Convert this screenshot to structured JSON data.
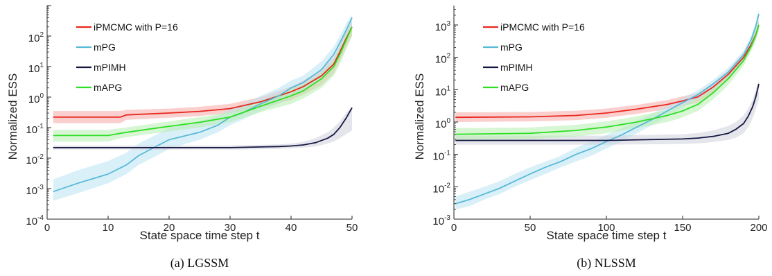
{
  "chart_data": [
    {
      "type": "line",
      "caption": "(a) LGSSM",
      "xlabel": "State space time step t",
      "ylabel": "Normalized ESS",
      "xlim": [
        0,
        50
      ],
      "ylim_log10": [
        -4,
        3
      ],
      "yscale": "log",
      "xticks": [
        "0",
        "10",
        "20",
        "30",
        "40",
        "50"
      ],
      "yticks": [
        -4,
        -3,
        -2,
        -1,
        0,
        1,
        2
      ],
      "legend_position": "top-left",
      "series": [
        {
          "name": "iPMCMC with P=16",
          "color": "#e8261e",
          "band_color": "#f6a8a4",
          "x": [
            1,
            12,
            13,
            20,
            25,
            30,
            35,
            40,
            42,
            45,
            47,
            48,
            49,
            50
          ],
          "y": [
            0.22,
            0.22,
            0.26,
            0.3,
            0.34,
            0.42,
            0.7,
            1.5,
            2.2,
            5,
            12,
            30,
            80,
            200
          ],
          "lo": [
            0.14,
            0.14,
            0.18,
            0.21,
            0.24,
            0.3,
            0.45,
            0.8,
            1.2,
            2.5,
            6,
            15,
            40,
            100
          ],
          "hi": [
            0.35,
            0.35,
            0.38,
            0.42,
            0.48,
            0.6,
            1.0,
            2.2,
            3.5,
            8,
            20,
            50,
            150,
            300
          ]
        },
        {
          "name": "mPG",
          "color": "#58b9d8",
          "band_color": "#b9e4f3",
          "x": [
            1,
            5,
            10,
            13,
            15,
            18,
            20,
            25,
            28,
            30,
            32,
            35,
            38,
            40,
            42,
            45,
            47,
            48,
            49,
            50
          ],
          "y": [
            0.0008,
            0.0015,
            0.003,
            0.006,
            0.012,
            0.025,
            0.04,
            0.07,
            0.12,
            0.22,
            0.3,
            0.6,
            1.1,
            2.0,
            3.0,
            8,
            25,
            60,
            150,
            400
          ],
          "lo": [
            0.0004,
            0.0007,
            0.0015,
            0.003,
            0.006,
            0.012,
            0.02,
            0.04,
            0.07,
            0.12,
            0.18,
            0.35,
            0.6,
            1.0,
            1.5,
            4,
            12,
            30,
            80,
            200
          ],
          "hi": [
            0.002,
            0.004,
            0.008,
            0.015,
            0.03,
            0.06,
            0.1,
            0.16,
            0.25,
            0.4,
            0.55,
            1.1,
            2.0,
            3.5,
            5,
            15,
            45,
            100,
            250,
            500
          ]
        },
        {
          "name": "mPIMH",
          "color": "#141641",
          "band_color": "#cfd0dc",
          "x": [
            1,
            10,
            20,
            30,
            38,
            40,
            42,
            44,
            46,
            47,
            48,
            49,
            50
          ],
          "y": [
            0.022,
            0.022,
            0.022,
            0.022,
            0.024,
            0.025,
            0.027,
            0.032,
            0.045,
            0.06,
            0.1,
            0.2,
            0.45
          ],
          "lo": [
            0.019,
            0.019,
            0.019,
            0.019,
            0.02,
            0.021,
            0.022,
            0.024,
            0.03,
            0.035,
            0.045,
            0.06,
            0.08
          ],
          "hi": [
            0.026,
            0.026,
            0.026,
            0.026,
            0.028,
            0.03,
            0.034,
            0.045,
            0.07,
            0.1,
            0.16,
            0.3,
            0.5
          ]
        },
        {
          "name": "mAPG",
          "color": "#2ede24",
          "band_color": "#b6efae",
          "x": [
            1,
            10,
            12,
            15,
            20,
            25,
            30,
            35,
            40,
            42,
            45,
            47,
            48,
            49,
            50
          ],
          "y": [
            0.055,
            0.055,
            0.065,
            0.08,
            0.11,
            0.15,
            0.22,
            0.5,
            1.1,
            1.6,
            4,
            10,
            25,
            70,
            200
          ],
          "lo": [
            0.035,
            0.035,
            0.045,
            0.055,
            0.075,
            0.1,
            0.15,
            0.32,
            0.6,
            0.9,
            2,
            5,
            12,
            35,
            100
          ],
          "hi": [
            0.085,
            0.085,
            0.095,
            0.115,
            0.16,
            0.22,
            0.32,
            0.75,
            1.8,
            2.6,
            6,
            16,
            40,
            110,
            250
          ]
        }
      ]
    },
    {
      "type": "line",
      "caption": "(b) NLSSM",
      "xlabel": "State space time step t",
      "ylabel": "Normalized ESS",
      "xlim": [
        0,
        200
      ],
      "ylim_log10": [
        -3,
        3.6
      ],
      "yscale": "log",
      "xticks": [
        "0",
        "50",
        "100",
        "150",
        "200"
      ],
      "yticks": [
        -3,
        -2,
        -1,
        0,
        1,
        2,
        3
      ],
      "legend_position": "top-left",
      "series": [
        {
          "name": "iPMCMC with P=16",
          "color": "#e8261e",
          "band_color": "#f6a8a4",
          "x": [
            1,
            50,
            80,
            100,
            120,
            140,
            150,
            160,
            170,
            180,
            190,
            195,
            198,
            200
          ],
          "y": [
            1.4,
            1.45,
            1.6,
            1.9,
            2.5,
            3.5,
            4.5,
            6,
            12,
            30,
            100,
            250,
            500,
            1000
          ],
          "lo": [
            1.0,
            1.05,
            1.15,
            1.35,
            1.8,
            2.5,
            3.2,
            4,
            8,
            20,
            70,
            180,
            350,
            700
          ],
          "hi": [
            2.0,
            2.05,
            2.25,
            2.6,
            3.4,
            4.8,
            6.2,
            8,
            16,
            40,
            140,
            350,
            700,
            1400
          ]
        },
        {
          "name": "mPG",
          "color": "#58b9d8",
          "band_color": "#b9e4f3",
          "x": [
            1,
            10,
            20,
            30,
            40,
            50,
            60,
            70,
            80,
            90,
            100,
            110,
            120,
            130,
            140,
            150,
            160,
            170,
            180,
            190,
            195,
            198,
            200
          ],
          "y": [
            0.003,
            0.004,
            0.006,
            0.009,
            0.015,
            0.025,
            0.04,
            0.06,
            0.1,
            0.15,
            0.25,
            0.4,
            0.7,
            1.2,
            2.2,
            4.0,
            7,
            15,
            35,
            120,
            350,
            900,
            2200
          ],
          "lo": [
            0.002,
            0.0025,
            0.004,
            0.006,
            0.01,
            0.016,
            0.025,
            0.04,
            0.06,
            0.09,
            0.15,
            0.25,
            0.45,
            0.8,
            1.5,
            2.8,
            5,
            10,
            25,
            80,
            240,
            600,
            1500
          ],
          "hi": [
            0.005,
            0.007,
            0.01,
            0.015,
            0.025,
            0.04,
            0.06,
            0.09,
            0.16,
            0.25,
            0.4,
            0.65,
            1.1,
            1.8,
            3.2,
            5.5,
            9.5,
            20,
            48,
            160,
            470,
            1200,
            3000
          ]
        },
        {
          "name": "mPIMH",
          "color": "#141641",
          "band_color": "#cfd0dc",
          "x": [
            1,
            50,
            100,
            150,
            160,
            170,
            180,
            185,
            190,
            193,
            196,
            198,
            200
          ],
          "y": [
            0.27,
            0.27,
            0.27,
            0.3,
            0.32,
            0.36,
            0.45,
            0.6,
            0.9,
            1.5,
            3.0,
            6.0,
            15
          ],
          "lo": [
            0.2,
            0.2,
            0.2,
            0.21,
            0.22,
            0.24,
            0.28,
            0.33,
            0.45,
            0.7,
            1.3,
            2.5,
            5
          ],
          "hi": [
            0.38,
            0.38,
            0.38,
            0.42,
            0.46,
            0.55,
            0.75,
            1.0,
            1.6,
            2.6,
            5.0,
            10,
            20
          ]
        },
        {
          "name": "mAPG",
          "color": "#2ede24",
          "band_color": "#b6efae",
          "x": [
            1,
            50,
            80,
            100,
            120,
            140,
            150,
            160,
            170,
            180,
            190,
            195,
            198,
            200
          ],
          "y": [
            0.42,
            0.45,
            0.55,
            0.7,
            1.0,
            1.6,
            2.2,
            3.5,
            8,
            22,
            80,
            220,
            480,
            1000
          ],
          "lo": [
            0.28,
            0.3,
            0.36,
            0.45,
            0.65,
            1.0,
            1.4,
            2.2,
            5,
            14,
            55,
            150,
            330,
            700
          ],
          "hi": [
            0.65,
            0.68,
            0.82,
            1.05,
            1.5,
            2.4,
            3.3,
            5.2,
            12,
            32,
            115,
            310,
            680,
            1400
          ]
        }
      ]
    }
  ]
}
